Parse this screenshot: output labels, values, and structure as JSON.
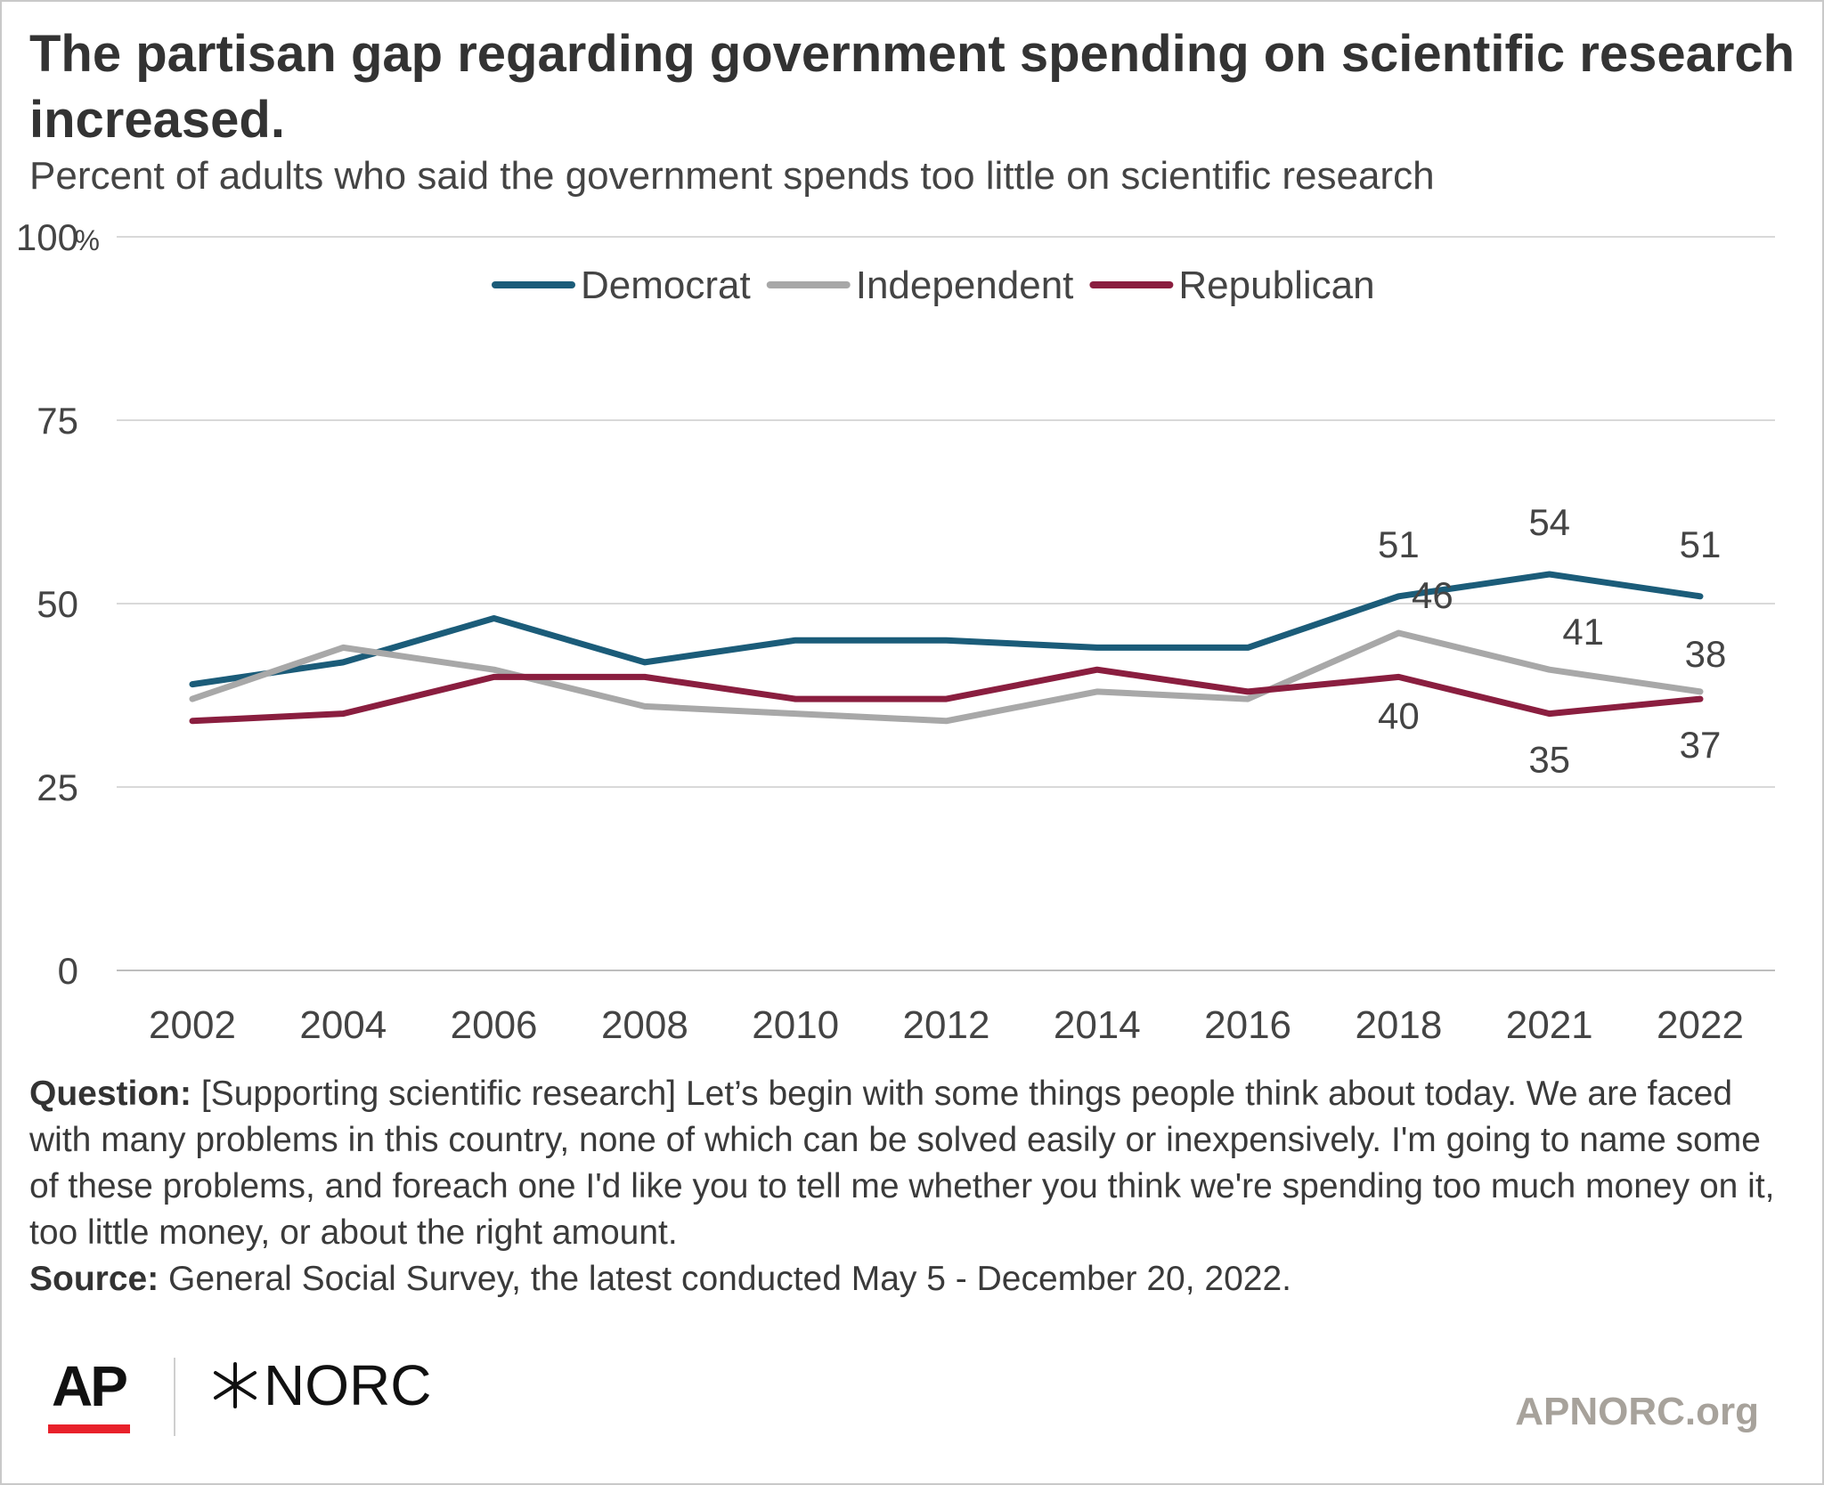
{
  "header": {
    "title": "The partisan gap regarding government spending on scientific research increased.",
    "subtitle": "Percent of adults who said the government spends too little on scientific research"
  },
  "chart_data": {
    "type": "line",
    "title": "The partisan gap regarding government spending on scientific research increased.",
    "subtitle": "Percent of adults who said the government spends too little on scientific research",
    "categories": [
      "2002",
      "2004",
      "2006",
      "2008",
      "2010",
      "2012",
      "2014",
      "2016",
      "2018",
      "2021",
      "2022"
    ],
    "ylim": [
      0,
      100
    ],
    "yticks": [
      0,
      25,
      50,
      75,
      100
    ],
    "ytick_labels": [
      "0",
      "25",
      "50",
      "75",
      "100"
    ],
    "y_unit": "%",
    "grid": "horizontal",
    "legend_position": "top-center",
    "series": [
      {
        "name": "Democrat",
        "color": "#1b5c79",
        "values": [
          39,
          42,
          48,
          42,
          45,
          45,
          44,
          44,
          51,
          54,
          51
        ],
        "labeled": [
          8,
          9,
          10
        ]
      },
      {
        "name": "Independent",
        "color": "#a8a8a8",
        "values": [
          37,
          44,
          41,
          36,
          35,
          34,
          38,
          37,
          46,
          41,
          38
        ],
        "labeled": [
          8,
          9,
          10
        ]
      },
      {
        "name": "Republican",
        "color": "#8a1e3f",
        "values": [
          34,
          35,
          40,
          40,
          37,
          37,
          41,
          38,
          40,
          35,
          37
        ],
        "labeled": [
          8,
          9,
          10
        ]
      }
    ]
  },
  "notes": {
    "question_label": "Question:",
    "question_text": "[Supporting scientific research] Let’s begin with some things people think about today. We are faced with many problems in this country, none of which can be solved easily or inexpensively. I'm going to name some of these problems, and foreach one I'd like you to tell me whether you think we're spending too much money on it, too little money, or about the right amount.",
    "source_label": "Source:",
    "source_text": "General Social Survey, the latest conducted May 5 - December 20, 2022."
  },
  "footer": {
    "ap_logo": "AP",
    "norc_logo": "NORC",
    "norc_icon": "asterisk-star-icon",
    "ap_bar_color": "#e8212a",
    "website": "APNORC.org"
  }
}
